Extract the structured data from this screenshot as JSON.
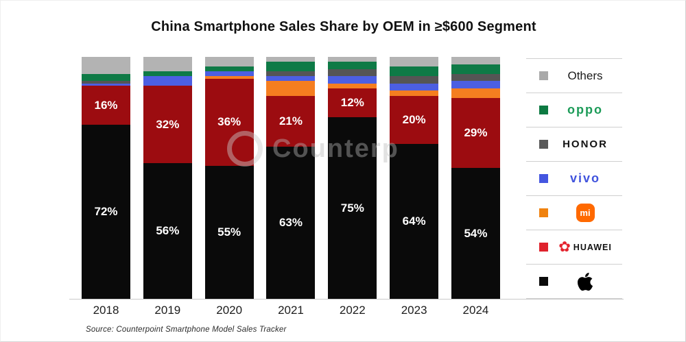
{
  "title": "China Smartphone Sales Share by OEM in ≥$600 Segment",
  "source_note": "Source: Counterpoint Smartphone Model Sales Tracker",
  "watermark_text": "Counterp",
  "chart_data": {
    "type": "bar",
    "stacked": true,
    "unit": "%",
    "title": "China Smartphone Sales Share by OEM in ≥$600 Segment",
    "categories": [
      "2018",
      "2019",
      "2020",
      "2021",
      "2022",
      "2023",
      "2024"
    ],
    "series": [
      {
        "name": "Apple",
        "color": "#0a0a0a",
        "labeled": true,
        "values": [
          72,
          56,
          55,
          63,
          75,
          64,
          54
        ]
      },
      {
        "name": "HUAWEI",
        "color": "#9c0c10",
        "labeled": true,
        "values": [
          16,
          32,
          36,
          21,
          12,
          20,
          29
        ]
      },
      {
        "name": "Mi",
        "color": "#f57e20",
        "labeled": false,
        "values": [
          0,
          0,
          1,
          6,
          2,
          2,
          4
        ]
      },
      {
        "name": "vivo",
        "color": "#4c5fe2",
        "labeled": false,
        "values": [
          1,
          4,
          2,
          2,
          3,
          3,
          3
        ]
      },
      {
        "name": "HONOR",
        "color": "#555555",
        "labeled": false,
        "values": [
          1,
          0,
          0,
          2,
          3,
          3,
          3
        ]
      },
      {
        "name": "OPPO",
        "color": "#0e7a46",
        "labeled": false,
        "values": [
          3,
          2,
          2,
          4,
          3,
          4,
          4
        ]
      },
      {
        "name": "Others",
        "color": "#b3b3b3",
        "labeled": false,
        "values": [
          7,
          6,
          4,
          2,
          2,
          4,
          3
        ]
      }
    ],
    "value_labels_shown_for": [
      "Apple",
      "HUAWEI"
    ],
    "ylim": [
      0,
      100
    ],
    "grid": false,
    "legend_position": "right",
    "xlabel": "",
    "ylabel": ""
  },
  "legend": {
    "items": [
      {
        "label": "Others",
        "swatch": "#a9a9a9"
      },
      {
        "label": "oppo",
        "swatch": "#0d7a42"
      },
      {
        "label": "HONOR",
        "swatch": "#595959"
      },
      {
        "label": "vivo",
        "swatch": "#4456e0"
      },
      {
        "label": "mi",
        "swatch": "#f0820f"
      },
      {
        "label": "HUAWEI",
        "swatch": "#df222c"
      },
      {
        "label": "Apple",
        "swatch": "#0a0a0a"
      }
    ]
  }
}
